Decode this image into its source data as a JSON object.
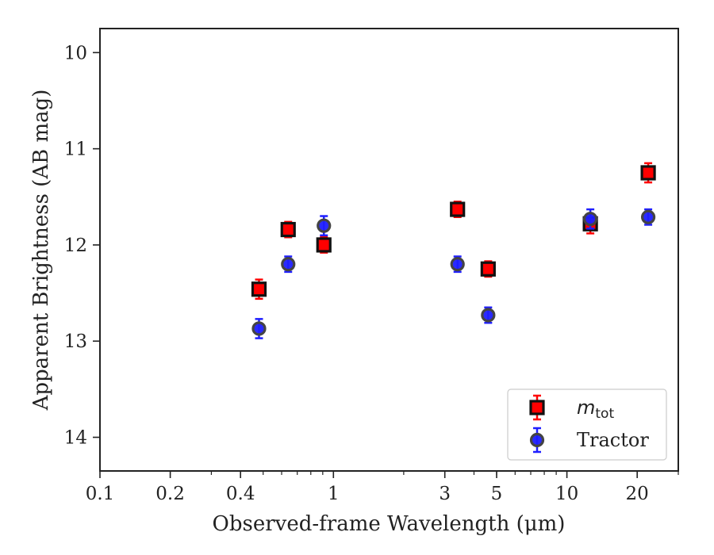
{
  "chart_data": {
    "type": "scatter",
    "xlabel": "Observed-frame Wavelength (μm)",
    "ylabel": "Apparent Brightness (AB mag)",
    "xscale": "log",
    "xlim": [
      0.1,
      30
    ],
    "ylim": [
      14.35,
      9.75
    ],
    "y_inverted": true,
    "grid": false,
    "legend_position": "lower-right",
    "x_ticks": [
      0.1,
      0.2,
      0.4,
      1,
      3,
      5,
      10,
      20
    ],
    "x_tick_labels": [
      "0.1",
      "0.2",
      "0.4",
      "1",
      "3",
      "5",
      "10",
      "20"
    ],
    "y_ticks": [
      10,
      11,
      12,
      13,
      14
    ],
    "y_tick_labels": [
      "10",
      "11",
      "12",
      "13",
      "14"
    ],
    "series": [
      {
        "name": "m_tot",
        "name_base": "m",
        "name_sub": "tot",
        "marker": "square",
        "color": "#ff0000",
        "edge_color": "#111111",
        "x": [
          0.48,
          0.64,
          0.91,
          3.4,
          4.6,
          12.6,
          22.3
        ],
        "y": [
          12.46,
          11.84,
          12.0,
          11.63,
          12.25,
          11.78,
          11.25
        ],
        "yerr": [
          0.1,
          0.08,
          0.08,
          0.08,
          0.08,
          0.1,
          0.1
        ]
      },
      {
        "name": "Tractor",
        "marker": "circle",
        "color": "#1f1fff",
        "edge_color": "#444444",
        "x": [
          0.48,
          0.64,
          0.91,
          3.4,
          4.6,
          12.6,
          22.3
        ],
        "y": [
          12.87,
          12.2,
          11.8,
          12.2,
          12.73,
          11.73,
          11.71
        ],
        "yerr": [
          0.1,
          0.08,
          0.1,
          0.08,
          0.08,
          0.1,
          0.08
        ]
      }
    ]
  }
}
